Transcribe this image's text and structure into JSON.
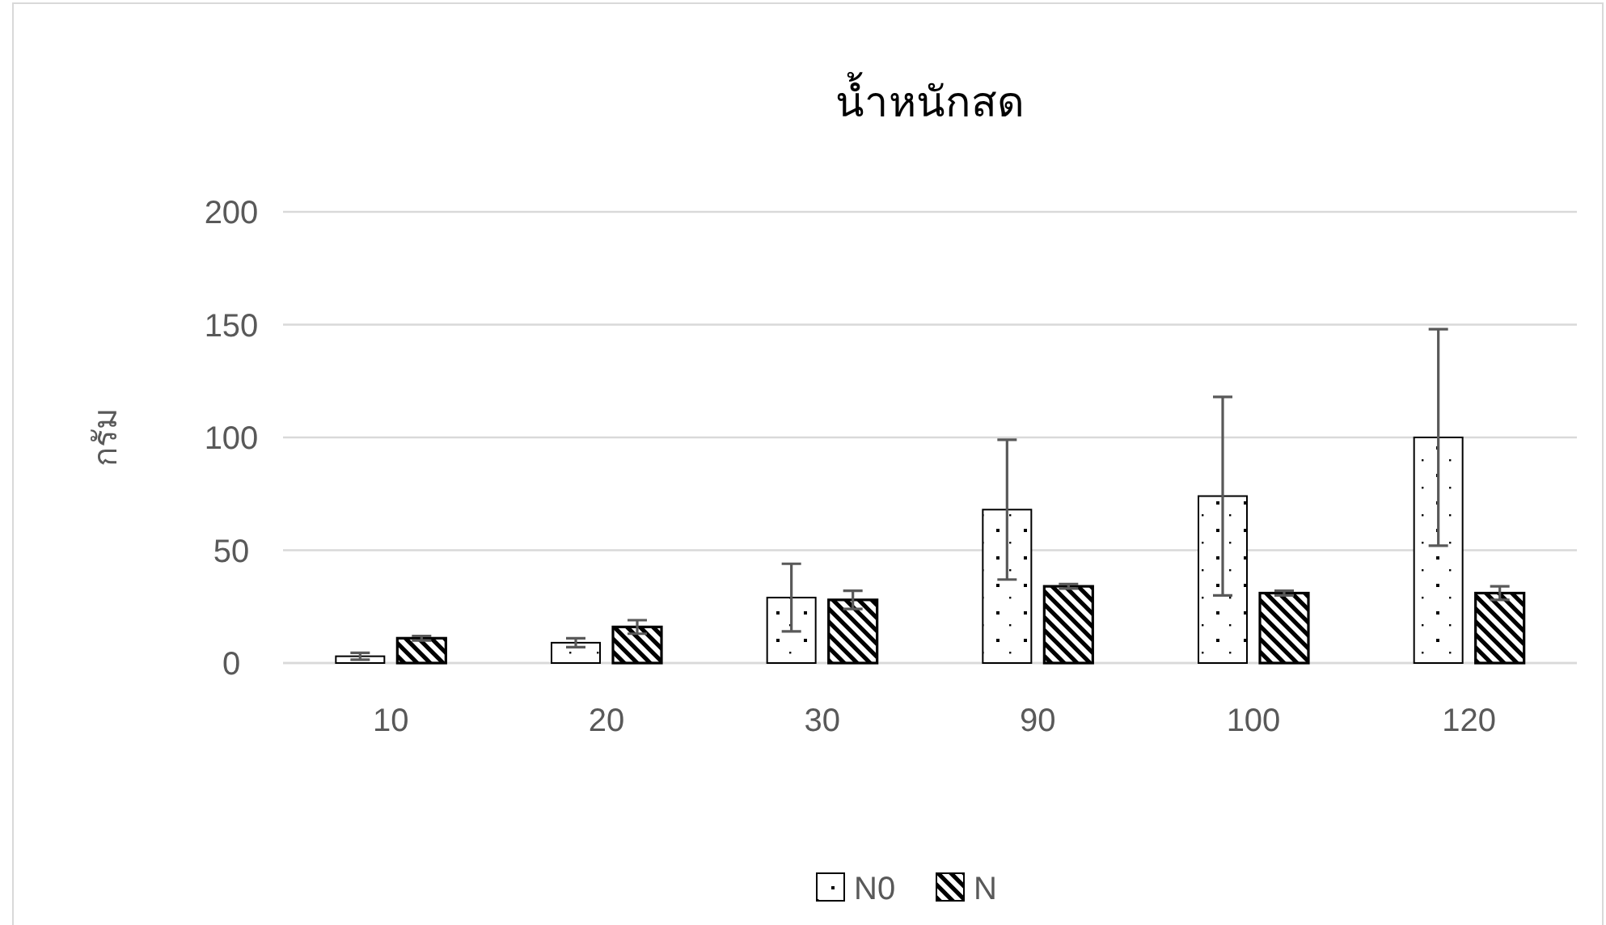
{
  "chart_data": {
    "type": "bar",
    "title": "น้ำหนักสด",
    "ylabel": "กรัม",
    "categories": [
      "10",
      "20",
      "30",
      "90",
      "100",
      "120"
    ],
    "series": [
      {
        "name": "N0",
        "color": "#000000",
        "values": [
          3,
          9,
          29,
          68,
          74,
          100
        ],
        "errors": [
          1.5,
          2,
          15,
          31,
          44,
          48
        ]
      },
      {
        "name": "N",
        "color": "#000000",
        "values": [
          11,
          16,
          28,
          34,
          31,
          31
        ],
        "errors": [
          1,
          3,
          4,
          1,
          1,
          3
        ]
      }
    ],
    "ylim": [
      0,
      200
    ],
    "yticks": [
      0,
      50,
      100,
      150,
      200
    ],
    "grid": "y",
    "legend": "bottom"
  }
}
